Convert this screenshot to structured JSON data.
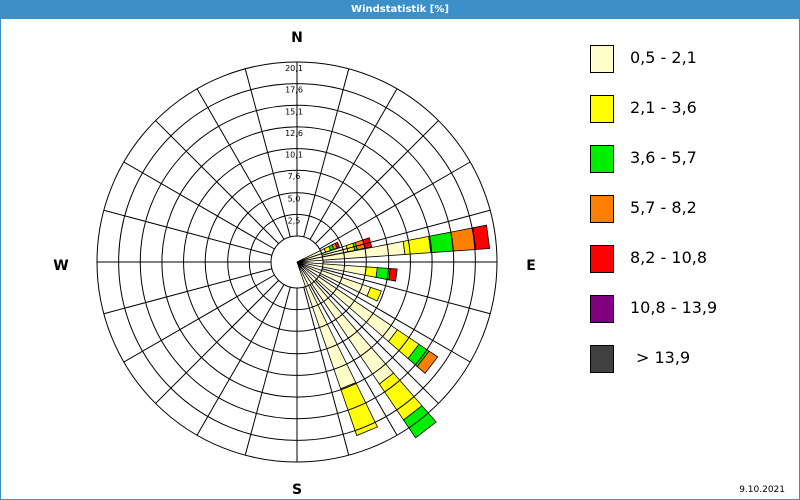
{
  "window": {
    "title": "Windstatistik [%]",
    "date": "9.10.2021"
  },
  "chart_data": {
    "type": "wind-rose",
    "title": "Windstatistik [%]",
    "unit": "%",
    "directions": {
      "N": "N",
      "E": "E",
      "S": "S",
      "W": "W"
    },
    "ring_labels": [
      "2,5",
      "5,0",
      "7,6",
      "10,1",
      "12,6",
      "15,1",
      "17,6",
      "20,1"
    ],
    "ring_values": [
      2.5,
      5.0,
      7.6,
      10.1,
      12.6,
      15.1,
      17.6,
      20.1
    ],
    "r_max": 20.1,
    "speed_classes": [
      {
        "label": "0,5 - 2,1",
        "color": "#ffffcc"
      },
      {
        "label": "2,1 - 3,6",
        "color": "#ffff00"
      },
      {
        "label": "3,6 - 5,7",
        "color": "#00ee00"
      },
      {
        "label": "5,7 - 8,2",
        "color": "#ff8000"
      },
      {
        "label": "8,2 - 10,8",
        "color": "#ff0000"
      },
      {
        "label": "10,8 - 13,9",
        "color": "#800080"
      },
      {
        "label": "> 13,9",
        "color": "#404040"
      }
    ],
    "sectors": [
      {
        "angle": 67.5,
        "values": [
          0.5,
          0.6,
          0.4,
          0.4,
          0.3,
          0,
          0
        ]
      },
      {
        "angle": 75,
        "values": [
          3.0,
          0.8,
          0.3,
          0.9,
          0.8,
          0,
          0
        ]
      },
      {
        "angle": 82.5,
        "values": [
          9.5,
          3.0,
          2.6,
          2.6,
          1.6,
          0,
          0
        ]
      },
      {
        "angle": 97.5,
        "values": [
          5.0,
          1.3,
          1.5,
          0,
          0.8,
          0,
          0
        ]
      },
      {
        "angle": 112.5,
        "values": [
          6.0,
          1.3,
          0,
          0,
          0,
          0,
          0
        ]
      },
      {
        "angle": 127.5,
        "values": [
          11.0,
          3.0,
          1.4,
          1.2,
          0,
          0,
          0
        ]
      },
      {
        "angle": 142.5,
        "values": [
          14.0,
          5.0,
          2.5,
          0,
          0,
          0,
          0
        ]
      },
      {
        "angle": 157.5,
        "values": [
          12.5,
          5.7,
          0,
          0,
          0,
          0,
          0
        ]
      }
    ]
  }
}
